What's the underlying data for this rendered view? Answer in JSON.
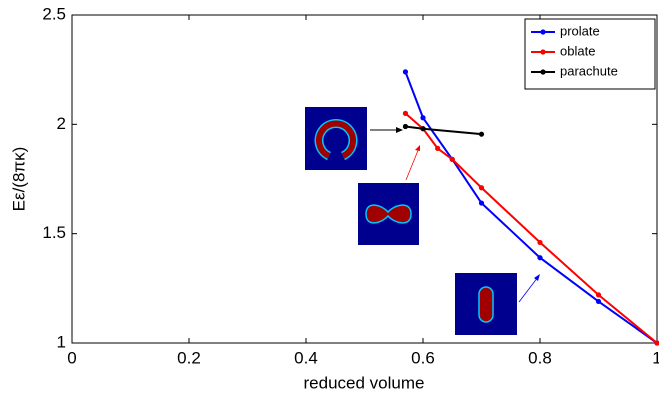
{
  "chart_data": {
    "type": "line",
    "x_label": "reduced volume",
    "y_label": "Eε/(8πκ)",
    "xlim": [
      0,
      1
    ],
    "ylim": [
      1,
      2.5
    ],
    "xticks": [
      0,
      0.2,
      0.4,
      0.6,
      0.8,
      1
    ],
    "yticks": [
      1,
      1.5,
      2,
      2.5
    ],
    "grid": false,
    "legend": "top-right",
    "series": [
      {
        "name": "prolate",
        "color": "#0000ff",
        "x": [
          0.57,
          0.6,
          0.65,
          0.7,
          0.8,
          0.9,
          1
        ],
        "values": [
          2.24,
          2.03,
          1.84,
          1.64,
          1.39,
          1.19,
          1
        ]
      },
      {
        "name": "oblate",
        "color": "#ff0000",
        "x": [
          0.57,
          0.6,
          0.625,
          0.65,
          0.7,
          0.8,
          0.9,
          1
        ],
        "values": [
          2.05,
          1.98,
          1.89,
          1.84,
          1.71,
          1.46,
          1.22,
          1
        ]
      },
      {
        "name": "parachute",
        "color": "#000000",
        "x": [
          0.57,
          0.6,
          0.7
        ],
        "values": [
          1.99,
          1.98,
          1.955
        ]
      }
    ]
  }
}
